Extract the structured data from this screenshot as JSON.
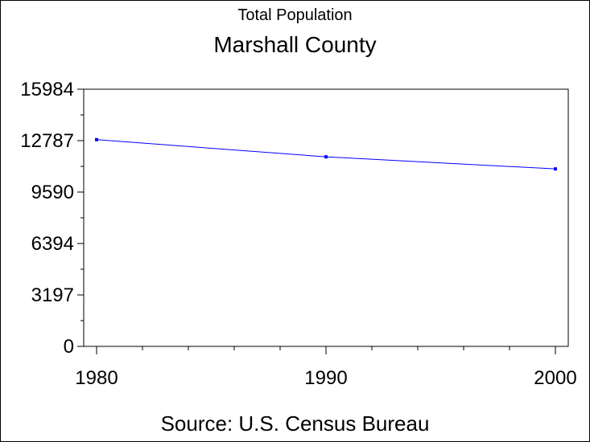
{
  "chart_data": {
    "type": "line",
    "title": "Marshall County",
    "subtitle": "Total Population",
    "source": "Source: U.S. Census Bureau",
    "x": [
      1980,
      1990,
      2000
    ],
    "xticks": [
      "1980",
      "1990",
      "2000"
    ],
    "yticks": [
      "0",
      "3197",
      "6394",
      "9590",
      "12787",
      "15984"
    ],
    "ylim": [
      0,
      15984
    ],
    "series": [
      {
        "values": [
          12850,
          11780,
          11030
        ]
      }
    ],
    "color": "#0000ff",
    "grid": false
  }
}
